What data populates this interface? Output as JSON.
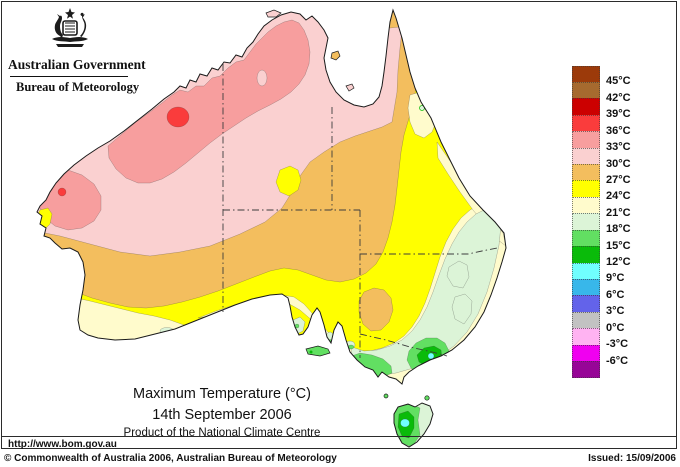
{
  "header": {
    "agency": "Australian Government",
    "bureau": "Bureau of Meteorology"
  },
  "titles": {
    "main": "Maximum Temperature (°C)",
    "date": "14th September 2006",
    "product": "Product of the National Climate Centre"
  },
  "legend": {
    "unit": "°C",
    "swatches": [
      {
        "color": "#9C3A0A",
        "label": "45°C"
      },
      {
        "color": "#A66A2F",
        "label": "42°C"
      },
      {
        "color": "#CC0000",
        "label": "39°C"
      },
      {
        "color": "#FA3C3C",
        "label": "36°C"
      },
      {
        "color": "#F79E9E",
        "label": "33°C"
      },
      {
        "color": "#FAD0D0",
        "label": "30°C"
      },
      {
        "color": "#F3BE5E",
        "label": "27°C"
      },
      {
        "color": "#FFFF00",
        "label": "24°C"
      },
      {
        "color": "#FFFBCC",
        "label": "21°C"
      },
      {
        "color": "#DCF4D7",
        "label": "18°C"
      },
      {
        "color": "#62DF62",
        "label": "15°C"
      },
      {
        "color": "#0ABB0A",
        "label": "12°C"
      },
      {
        "color": "#70FFFF",
        "label": "9°C"
      },
      {
        "color": "#38B7EA",
        "label": "6°C"
      },
      {
        "color": "#6363EA",
        "label": "3°C"
      },
      {
        "color": "#C2C2C2",
        "label": "0°C"
      },
      {
        "color": "#FFB3F2",
        "label": "-3°C"
      },
      {
        "color": "#F000F0",
        "label": "-6°C"
      },
      {
        "color": "#970597",
        "label": null
      }
    ]
  },
  "footer": {
    "url": "http://www.bom.gov.au",
    "copyright": "© Commonwealth of Australia 2006, Australian Bureau of Meteorology",
    "issued": "Issued: 15/09/2006"
  },
  "chart_data": {
    "type": "heatmap",
    "title": "Maximum Temperature (°C)",
    "date": "14th September 2006",
    "region": "Australia",
    "unit": "°C",
    "scale_boundaries_c": [
      45,
      42,
      39,
      36,
      33,
      30,
      27,
      24,
      21,
      18,
      15,
      12,
      9,
      6,
      3,
      0,
      -3,
      -6
    ],
    "scale_colors": [
      "#9C3A0A",
      "#A66A2F",
      "#CC0000",
      "#FA3C3C",
      "#F79E9E",
      "#FAD0D0",
      "#F3BE5E",
      "#FFFF00",
      "#FFFBCC",
      "#DCF4D7",
      "#62DF62",
      "#0ABB0A",
      "#70FFFF",
      "#38B7EA",
      "#6363EA",
      "#C2C2C2",
      "#FFB3F2",
      "#F000F0",
      "#970597"
    ],
    "legend_position": "right",
    "notes_visible_patterns": {
      "hottest_band_shown_c": "36-39 (red patches, north-west interior)",
      "coolest_band_shown_c": "9-12 (cyan spots, south-east alps and central Tasmania)"
    }
  }
}
